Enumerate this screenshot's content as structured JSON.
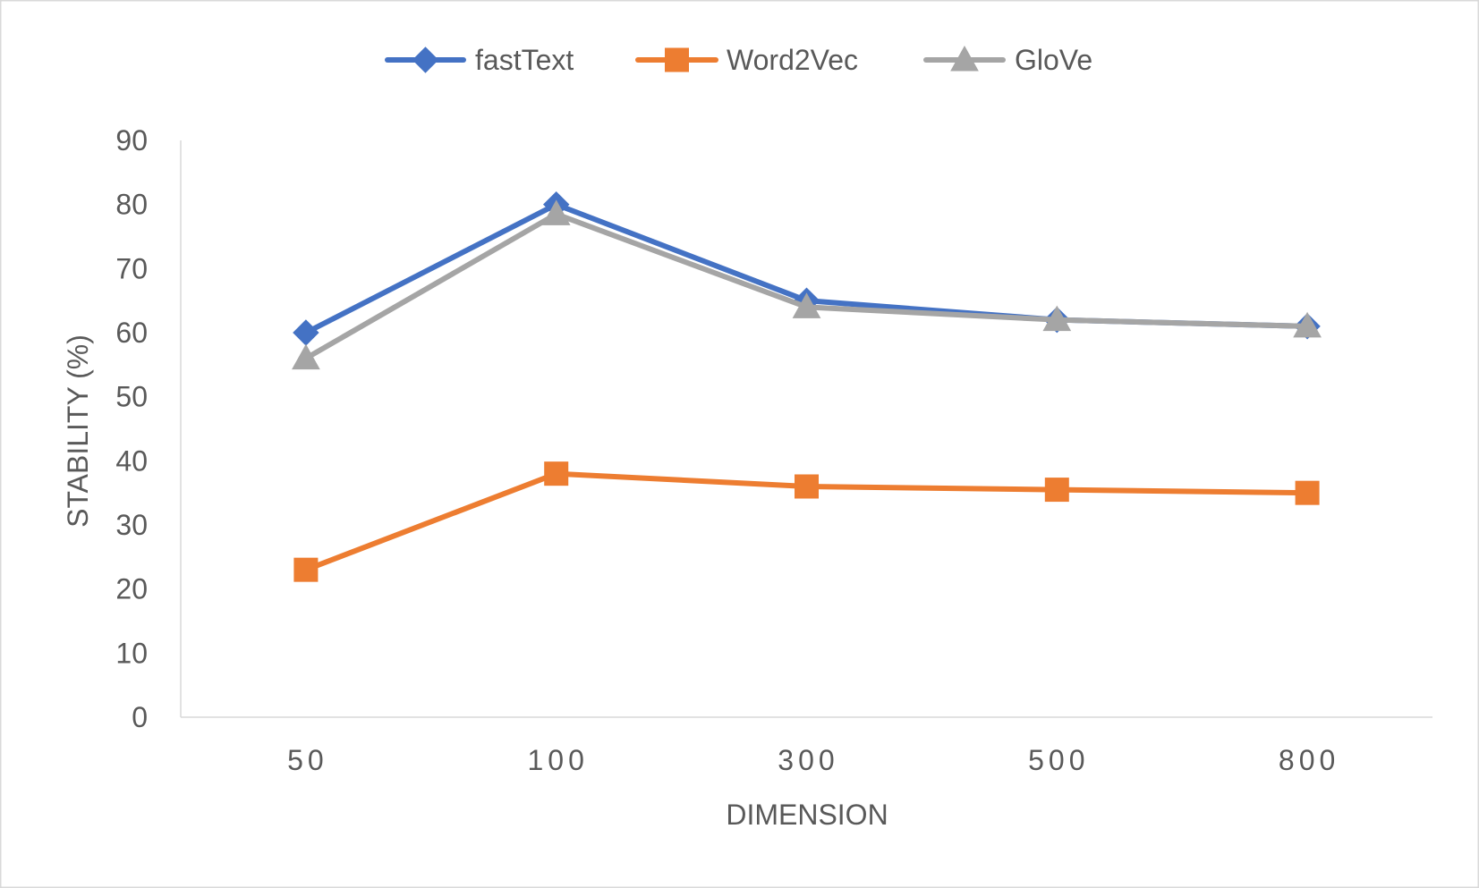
{
  "chart_data": {
    "type": "line",
    "xlabel": "DIMENSION",
    "ylabel": "STABILITY (%)",
    "categories": [
      "50",
      "100",
      "300",
      "500",
      "800"
    ],
    "ylim": [
      0,
      90
    ],
    "yticks": [
      0,
      10,
      20,
      30,
      40,
      50,
      60,
      70,
      80,
      90
    ],
    "grid": false,
    "legend_position": "top",
    "series": [
      {
        "name": "fastText",
        "color": "#4472C4",
        "marker": "diamond",
        "values": [
          60,
          80,
          65,
          62,
          61
        ]
      },
      {
        "name": "Word2Vec",
        "color": "#ED7D31",
        "marker": "square",
        "values": [
          23,
          38,
          36,
          35.5,
          35
        ]
      },
      {
        "name": "GloVe",
        "color": "#A5A5A5",
        "marker": "triangle",
        "values": [
          56,
          78.5,
          64,
          62,
          61
        ]
      }
    ]
  }
}
